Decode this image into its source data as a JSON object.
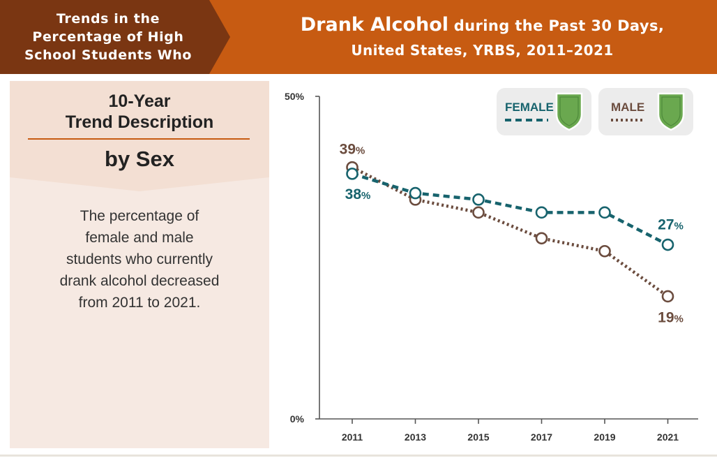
{
  "banner": {
    "left_tag": [
      "Trends in the",
      "Percentage of High",
      "School Students Who"
    ],
    "title_bold": "Drank Alcohol",
    "title_rest": " during the Past 30 Days,",
    "title_line2": "United States, YRBS, 2011–2021"
  },
  "panel": {
    "title_lines": [
      "10-Year",
      "Trend Description"
    ],
    "subtitle": "by Sex",
    "description_lines": [
      "The percentage of",
      "female and male",
      "students who currently",
      "drank alcohol decreased",
      "from 2011 to 2021."
    ]
  },
  "colors": {
    "banner_dark": "#7a3612",
    "banner_orange": "#c75b12",
    "panel_bg": "#f6e9e2",
    "female": "#17636d",
    "male": "#6b4c3e",
    "legend_bg": "#ececec",
    "shield": "#6aa84f"
  },
  "legend": [
    {
      "label": "FEMALE",
      "series": "female",
      "icon": "shield-icon"
    },
    {
      "label": "MALE",
      "series": "male",
      "icon": "shield-icon"
    }
  ],
  "chart_data": {
    "type": "line",
    "x": [
      "2011",
      "2013",
      "2015",
      "2017",
      "2019",
      "2021"
    ],
    "ylim": [
      0,
      50
    ],
    "yticks": [
      "0%",
      "50%"
    ],
    "ytick_values": [
      0,
      50
    ],
    "series": [
      {
        "key": "female",
        "name": "FEMALE",
        "values": [
          38,
          35,
          34,
          32,
          32,
          27
        ],
        "labels": [
          {
            "index": 0,
            "text": "38"
          },
          {
            "index": 5,
            "text": "27"
          }
        ]
      },
      {
        "key": "male",
        "name": "MALE",
        "values": [
          39,
          34,
          32,
          28,
          26,
          19
        ],
        "labels": [
          {
            "index": 0,
            "text": "39"
          },
          {
            "index": 5,
            "text": "19"
          }
        ]
      }
    ],
    "percent_symbol": "%"
  }
}
